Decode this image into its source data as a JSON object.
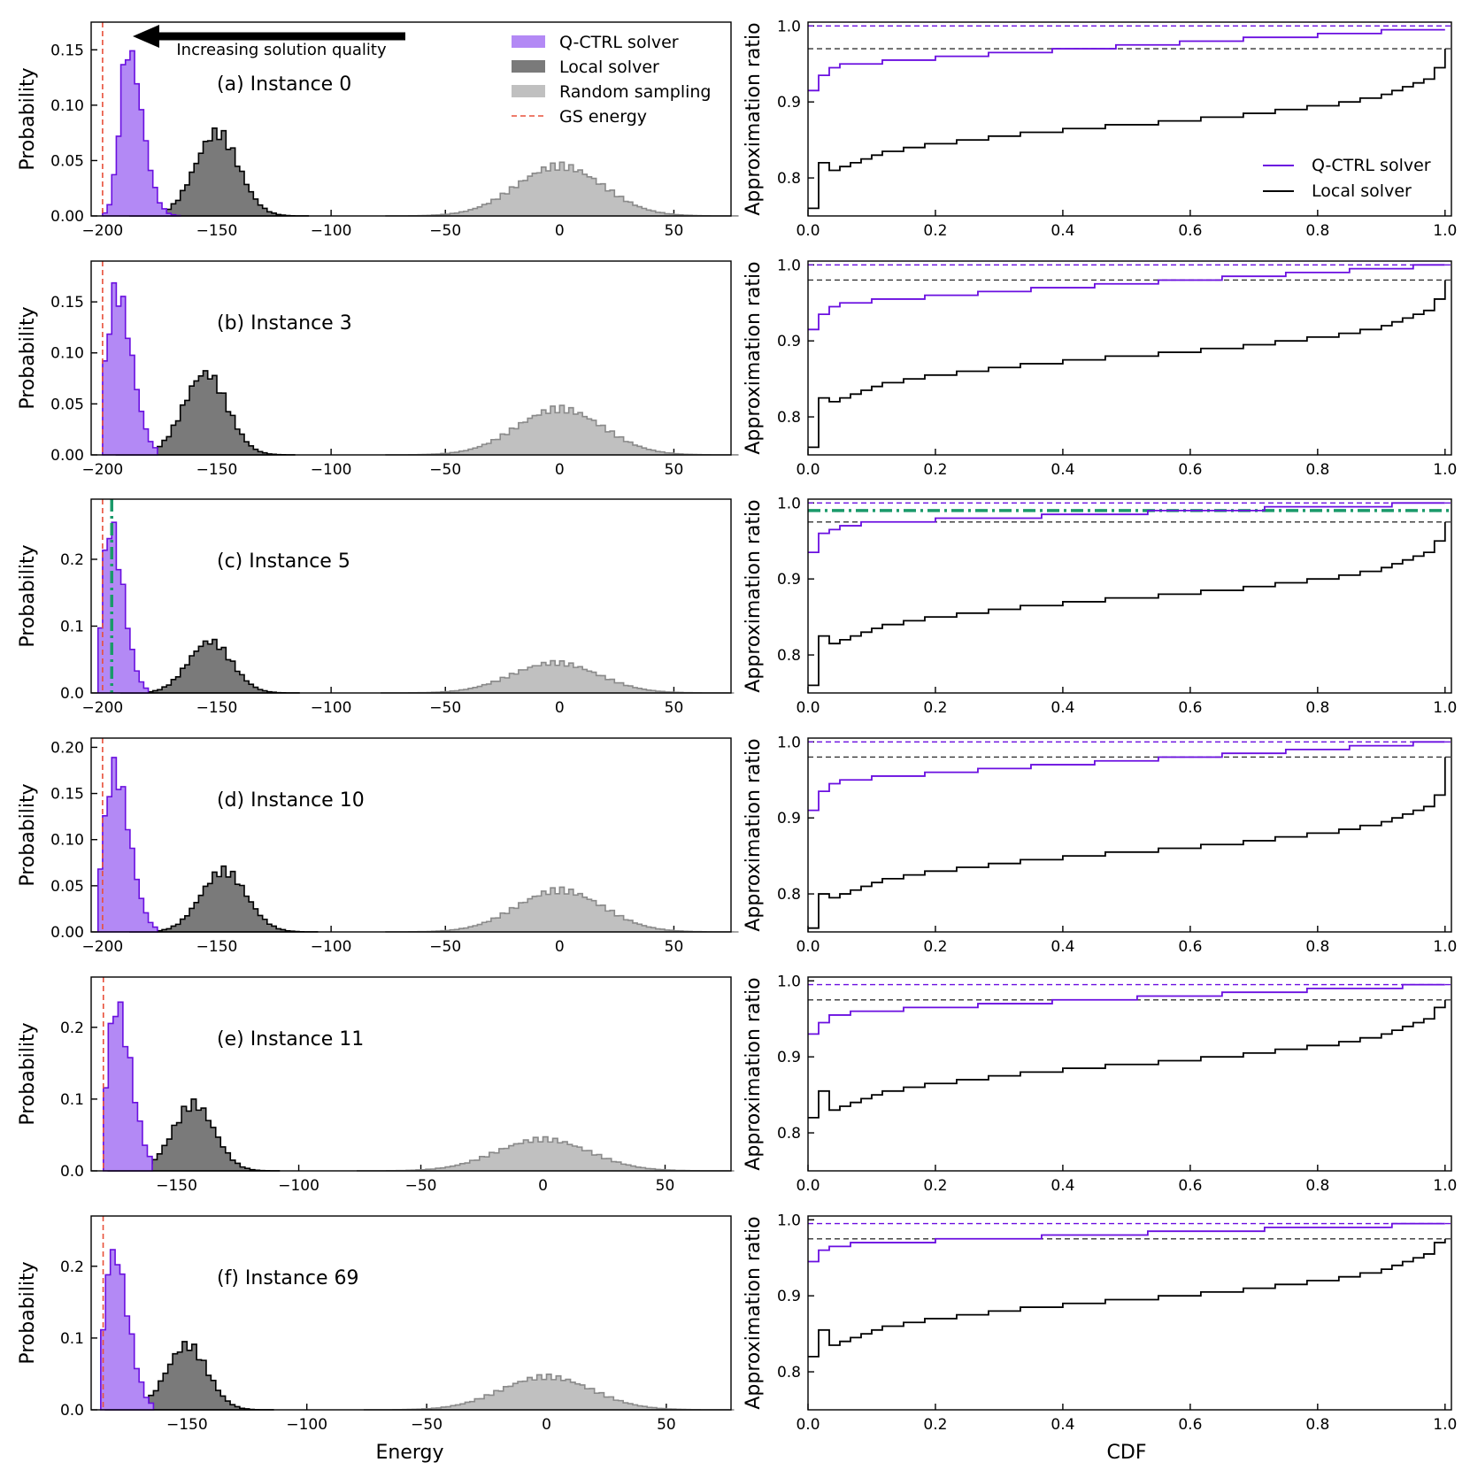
{
  "figure": {
    "left_xlabel": "Energy",
    "right_xlabel": "CDF",
    "left_ylabel": "Probability",
    "right_ylabel": "Approximation ratio",
    "arrow_text": "Increasing solution quality",
    "legend_left": [
      {
        "label": "Q-CTRL solver",
        "color": "#b389f5",
        "kind": "patch"
      },
      {
        "label": "Local solver",
        "color": "#7a7a7a",
        "kind": "patch"
      },
      {
        "label": "Random sampling",
        "color": "#c0c0c0",
        "kind": "patch"
      },
      {
        "label": "GS energy",
        "color": "#e8503a",
        "kind": "dash"
      }
    ],
    "legend_right": [
      {
        "label": "Q-CTRL solver",
        "color": "#6a0fe0"
      },
      {
        "label": "Local solver",
        "color": "#000000"
      }
    ],
    "colors": {
      "qctrl_fill": "#b389f5",
      "qctrl_edge": "#6a0fe0",
      "local_fill": "#7a7a7a",
      "random_fill": "#c0c0c0",
      "random_edge": "#8a8a8a",
      "gs": "#e8503a",
      "green": "#1a9a6a"
    }
  },
  "chart_data": [
    {
      "type": "histogram",
      "panel": "(a)",
      "label": "(a)  Instance 0",
      "xlim": [
        -205,
        75
      ],
      "ylim": [
        0,
        0.175
      ],
      "xticks": [
        -200,
        -150,
        -100,
        -50,
        0,
        50
      ],
      "yticks": [
        0.0,
        0.05,
        0.1,
        0.15
      ],
      "gs_energy": -200,
      "qctrl": {
        "mean": -189,
        "sd": 3.5,
        "peak": 0.15,
        "min": -199,
        "max": -167,
        "skew": 1.8
      },
      "local": {
        "mean": -150,
        "sd": 9.5,
        "peak": 0.075
      },
      "random": {
        "mean": 0,
        "sd": 19,
        "peak": 0.045
      }
    },
    {
      "type": "step",
      "panel": "(a) CDF",
      "xlim": [
        0,
        1.01
      ],
      "ylim": [
        0.75,
        1.005
      ],
      "xticks": [
        0.0,
        0.2,
        0.4,
        0.6,
        0.8,
        1.0
      ],
      "yticks": [
        0.8,
        0.9,
        1.0
      ],
      "qctrl_ref": 1.0,
      "local_ref": 0.97,
      "qctrl": {
        "start": 0.915,
        "knee": 0.945,
        "end": 0.997
      },
      "local": {
        "start": 0.76,
        "knee": 0.83,
        "mid": 0.87,
        "end": 0.97
      }
    },
    {
      "type": "histogram",
      "panel": "(b)",
      "label": "(b)  Instance 3",
      "xlim": [
        -205,
        75
      ],
      "ylim": [
        0,
        0.19
      ],
      "xticks": [
        -200,
        -150,
        -100,
        -50,
        0,
        50
      ],
      "yticks": [
        0.0,
        0.05,
        0.1,
        0.15
      ],
      "gs_energy": -200,
      "qctrl": {
        "mean": -194,
        "sd": 4.5,
        "peak": 0.16,
        "min": -200,
        "max": -178,
        "skew": 1.5
      },
      "local": {
        "mean": -155,
        "sd": 9.5,
        "peak": 0.08
      },
      "random": {
        "mean": 0,
        "sd": 19,
        "peak": 0.045
      }
    },
    {
      "type": "step",
      "panel": "(b) CDF",
      "xlim": [
        0,
        1.01
      ],
      "ylim": [
        0.75,
        1.005
      ],
      "xticks": [
        0.0,
        0.2,
        0.4,
        0.6,
        0.8,
        1.0
      ],
      "yticks": [
        0.8,
        0.9,
        1.0
      ],
      "qctrl_ref": 1.0,
      "local_ref": 0.98,
      "qctrl": {
        "start": 0.915,
        "knee": 0.945,
        "end": 1.0
      },
      "local": {
        "start": 0.76,
        "knee": 0.84,
        "mid": 0.88,
        "end": 0.98
      }
    },
    {
      "type": "histogram",
      "panel": "(c)",
      "label": "(c)  Instance 5",
      "xlim": [
        -205,
        75
      ],
      "ylim": [
        0,
        0.29
      ],
      "xticks": [
        -200,
        -150,
        -100,
        -50,
        0,
        50
      ],
      "yticks": [
        0.0,
        0.1,
        0.2
      ],
      "gs_energy": -200,
      "green_line": -196,
      "qctrl": {
        "mean": -197,
        "sd": 3.0,
        "peak": 0.25,
        "min": -201,
        "max": -182,
        "skew": 2.0
      },
      "local": {
        "mean": -153,
        "sd": 9.5,
        "peak": 0.077
      },
      "random": {
        "mean": -2,
        "sd": 19,
        "peak": 0.045
      }
    },
    {
      "type": "step",
      "panel": "(c) CDF",
      "xlim": [
        0,
        1.01
      ],
      "ylim": [
        0.75,
        1.005
      ],
      "xticks": [
        0.0,
        0.2,
        0.4,
        0.6,
        0.8,
        1.0
      ],
      "yticks": [
        0.8,
        0.9,
        1.0
      ],
      "qctrl_ref": 1.0,
      "local_ref": 0.975,
      "green_ref": 0.99,
      "qctrl": {
        "start": 0.935,
        "knee": 0.97,
        "end": 1.0
      },
      "local": {
        "start": 0.76,
        "knee": 0.84,
        "mid": 0.875,
        "end": 0.975
      }
    },
    {
      "type": "histogram",
      "panel": "(d)",
      "label": "(d)  Instance 10",
      "xlim": [
        -205,
        75
      ],
      "ylim": [
        0,
        0.21
      ],
      "xticks": [
        -200,
        -150,
        -100,
        -50,
        0,
        50
      ],
      "yticks": [
        0.0,
        0.05,
        0.1,
        0.15,
        0.2
      ],
      "gs_energy": -200,
      "qctrl": {
        "mean": -195,
        "sd": 4.5,
        "peak": 0.175,
        "min": -201,
        "max": -178,
        "skew": 1.5
      },
      "local": {
        "mean": -147,
        "sd": 10,
        "peak": 0.066
      },
      "random": {
        "mean": 0,
        "sd": 19,
        "peak": 0.045
      }
    },
    {
      "type": "step",
      "panel": "(d) CDF",
      "xlim": [
        0,
        1.01
      ],
      "ylim": [
        0.75,
        1.005
      ],
      "xticks": [
        0.0,
        0.2,
        0.4,
        0.6,
        0.8,
        1.0
      ],
      "yticks": [
        0.8,
        0.9,
        1.0
      ],
      "qctrl_ref": 1.0,
      "local_ref": 0.98,
      "qctrl": {
        "start": 0.91,
        "knee": 0.945,
        "end": 1.0
      },
      "local": {
        "start": 0.755,
        "knee": 0.81,
        "mid": 0.855,
        "end": 0.98
      }
    },
    {
      "type": "histogram",
      "panel": "(e)",
      "label": "(e)  Instance 11",
      "xlim": [
        -185,
        77
      ],
      "ylim": [
        0,
        0.27
      ],
      "xticks": [
        -150,
        -100,
        -50,
        0,
        50
      ],
      "yticks": [
        0.0,
        0.1,
        0.2
      ],
      "gs_energy": -180,
      "qctrl": {
        "mean": -175,
        "sd": 3.5,
        "peak": 0.23,
        "min": -180,
        "max": -162,
        "skew": 1.8
      },
      "local": {
        "mean": -143,
        "sd": 8.5,
        "peak": 0.093
      },
      "random": {
        "mean": 0,
        "sd": 19,
        "peak": 0.044
      }
    },
    {
      "type": "step",
      "panel": "(e) CDF",
      "xlim": [
        0,
        1.01
      ],
      "ylim": [
        0.75,
        1.005
      ],
      "xticks": [
        0.0,
        0.2,
        0.4,
        0.6,
        0.8,
        1.0
      ],
      "yticks": [
        0.8,
        0.9,
        1.0
      ],
      "qctrl_ref": 0.995,
      "local_ref": 0.975,
      "qctrl": {
        "start": 0.93,
        "knee": 0.955,
        "end": 0.995
      },
      "local": {
        "start": 0.82,
        "knee": 0.86,
        "mid": 0.89,
        "end": 0.975
      }
    },
    {
      "type": "histogram",
      "panel": "(f)",
      "label": "(f)  Instance 69",
      "xlim": [
        -190,
        77
      ],
      "ylim": [
        0,
        0.27
      ],
      "xticks": [
        -150,
        -100,
        -50,
        0,
        50
      ],
      "yticks": [
        0.0,
        0.1,
        0.2
      ],
      "gs_energy": -185,
      "qctrl": {
        "mean": -181,
        "sd": 3.5,
        "peak": 0.22,
        "min": -185,
        "max": -166,
        "skew": 1.8
      },
      "local": {
        "mean": -150,
        "sd": 8.5,
        "peak": 0.09
      },
      "random": {
        "mean": 0,
        "sd": 19,
        "peak": 0.046
      }
    },
    {
      "type": "step",
      "panel": "(f) CDF",
      "xlim": [
        0,
        1.01
      ],
      "ylim": [
        0.75,
        1.005
      ],
      "xticks": [
        0.0,
        0.2,
        0.4,
        0.6,
        0.8,
        1.0
      ],
      "yticks": [
        0.8,
        0.9,
        1.0
      ],
      "qctrl_ref": 0.995,
      "local_ref": 0.975,
      "qctrl": {
        "start": 0.945,
        "knee": 0.965,
        "end": 0.995
      },
      "local": {
        "start": 0.82,
        "knee": 0.86,
        "mid": 0.895,
        "end": 0.975
      }
    }
  ]
}
